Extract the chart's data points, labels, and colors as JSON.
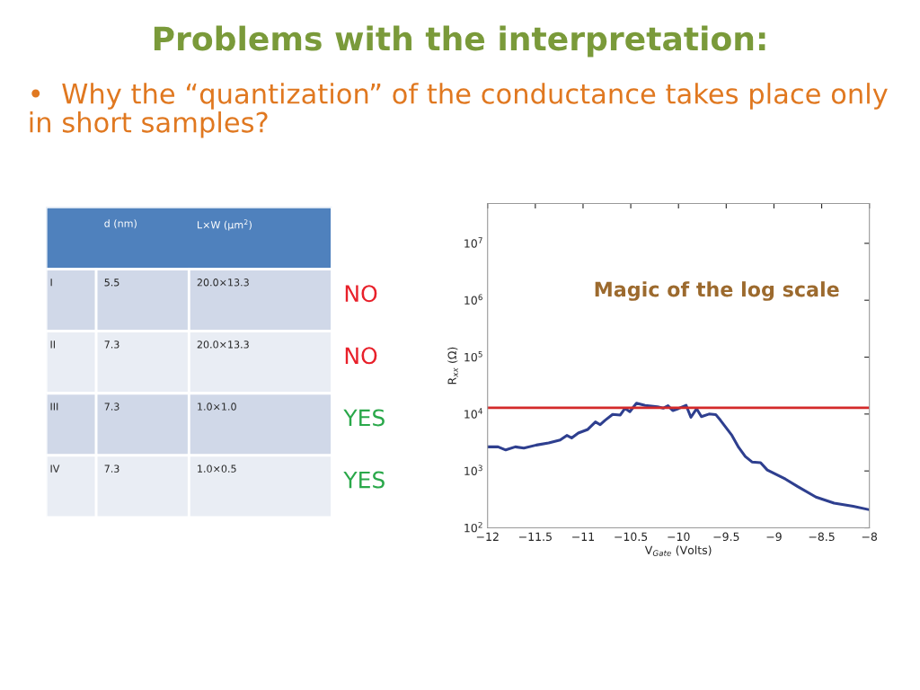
{
  "chart_data": [
    {
      "type": "other",
      "title": "Problems with the interpretation:",
      "subtitle": "•  Why the “quantization” of the conductance takes place only in short samples?",
      "categories": [
        "d (nm)",
        "L×W (µm$^{2}$)"
      ],
      "y_categories": [
        "I",
        "II",
        "III",
        "IV"
      ],
      "cell_labels": [
        [
          "5.5",
          "20.0×13.3"
        ],
        [
          "7.3",
          "20.0×13.3"
        ],
        [
          "7.3",
          "1.0×1.0"
        ],
        [
          "7.3",
          "1.0×0.5"
        ]
      ],
      "y2_categories": [
        "NO",
        "NO",
        "YES",
        "YES"
      ],
      "colors": [
        "#e8202a",
        "#e8202a",
        "#2aa84a",
        "#2aa84a"
      ]
    },
    {
      "type": "line",
      "xlabel": "V$_{Gate}$ (Volts)",
      "ylabel": "R$_{xx}$ (Ω)",
      "log": "y",
      "grid": false,
      "xlim": [
        -12,
        -8
      ],
      "ylim": [
        100,
        50000000
      ],
      "xticks": [
        {
          "value": -12,
          "label": "−12"
        },
        {
          "value": -11.5,
          "label": "−11.5"
        },
        {
          "value": -11,
          "label": "−11"
        },
        {
          "value": -10.5,
          "label": "−10.5"
        },
        {
          "value": -10,
          "label": "−10"
        },
        {
          "value": -9.5,
          "label": "−9.5"
        },
        {
          "value": -9,
          "label": "−9"
        },
        {
          "value": -8.5,
          "label": "−8.5"
        },
        {
          "value": -8,
          "label": "−8"
        }
      ],
      "yticks": [
        {
          "value": 100,
          "label": "10$^{2}$"
        },
        {
          "value": 1000,
          "label": "10$^{3}$"
        },
        {
          "value": 10000,
          "label": "10$^{4}$"
        },
        {
          "value": 100000,
          "label": "10$^{5}$"
        },
        {
          "value": 1000000,
          "label": "10$^{6}$"
        },
        {
          "value": 10000000,
          "label": "10$^{7}$"
        }
      ],
      "x": [
        -12,
        -11.89,
        -11.81,
        -11.71,
        -11.62,
        -11.49,
        -11.36,
        -11.24,
        -11.17,
        -11.12,
        -11.05,
        -10.95,
        -10.87,
        -10.82,
        -10.77,
        -10.69,
        -10.61,
        -10.56,
        -10.51,
        -10.44,
        -10.35,
        -10.22,
        -10.16,
        -10.11,
        -10.06,
        -10.0,
        -9.92,
        -9.87,
        -9.81,
        -9.76,
        -9.68,
        -9.61,
        -9.56,
        -9.56,
        -9.44,
        -9.37,
        -9.3,
        -9.23,
        -9.14,
        -9.07,
        -8.88,
        -8.75,
        -8.56,
        -8.37,
        -8.17,
        -8
      ],
      "series": [
        {
          "color": "#2e3f8f",
          "values": [
            2650,
            2650,
            2340,
            2650,
            2530,
            2850,
            3100,
            3500,
            4210,
            3800,
            4640,
            5370,
            7280,
            6500,
            7740,
            9880,
            9600,
            12600,
            11000,
            15500,
            14200,
            13400,
            12700,
            14000,
            11500,
            12500,
            14200,
            8750,
            12400,
            9000,
            10000,
            9800,
            7760,
            7760,
            4210,
            2600,
            1790,
            1440,
            1400,
            1040,
            720,
            530,
            347,
            272,
            240,
            208
          ]
        }
      ],
      "ref_lines": [
        {
          "axis": "y",
          "value": 12900,
          "color": "#d42a2a"
        }
      ],
      "annotations": [
        "Magic of the log scale"
      ]
    }
  ]
}
